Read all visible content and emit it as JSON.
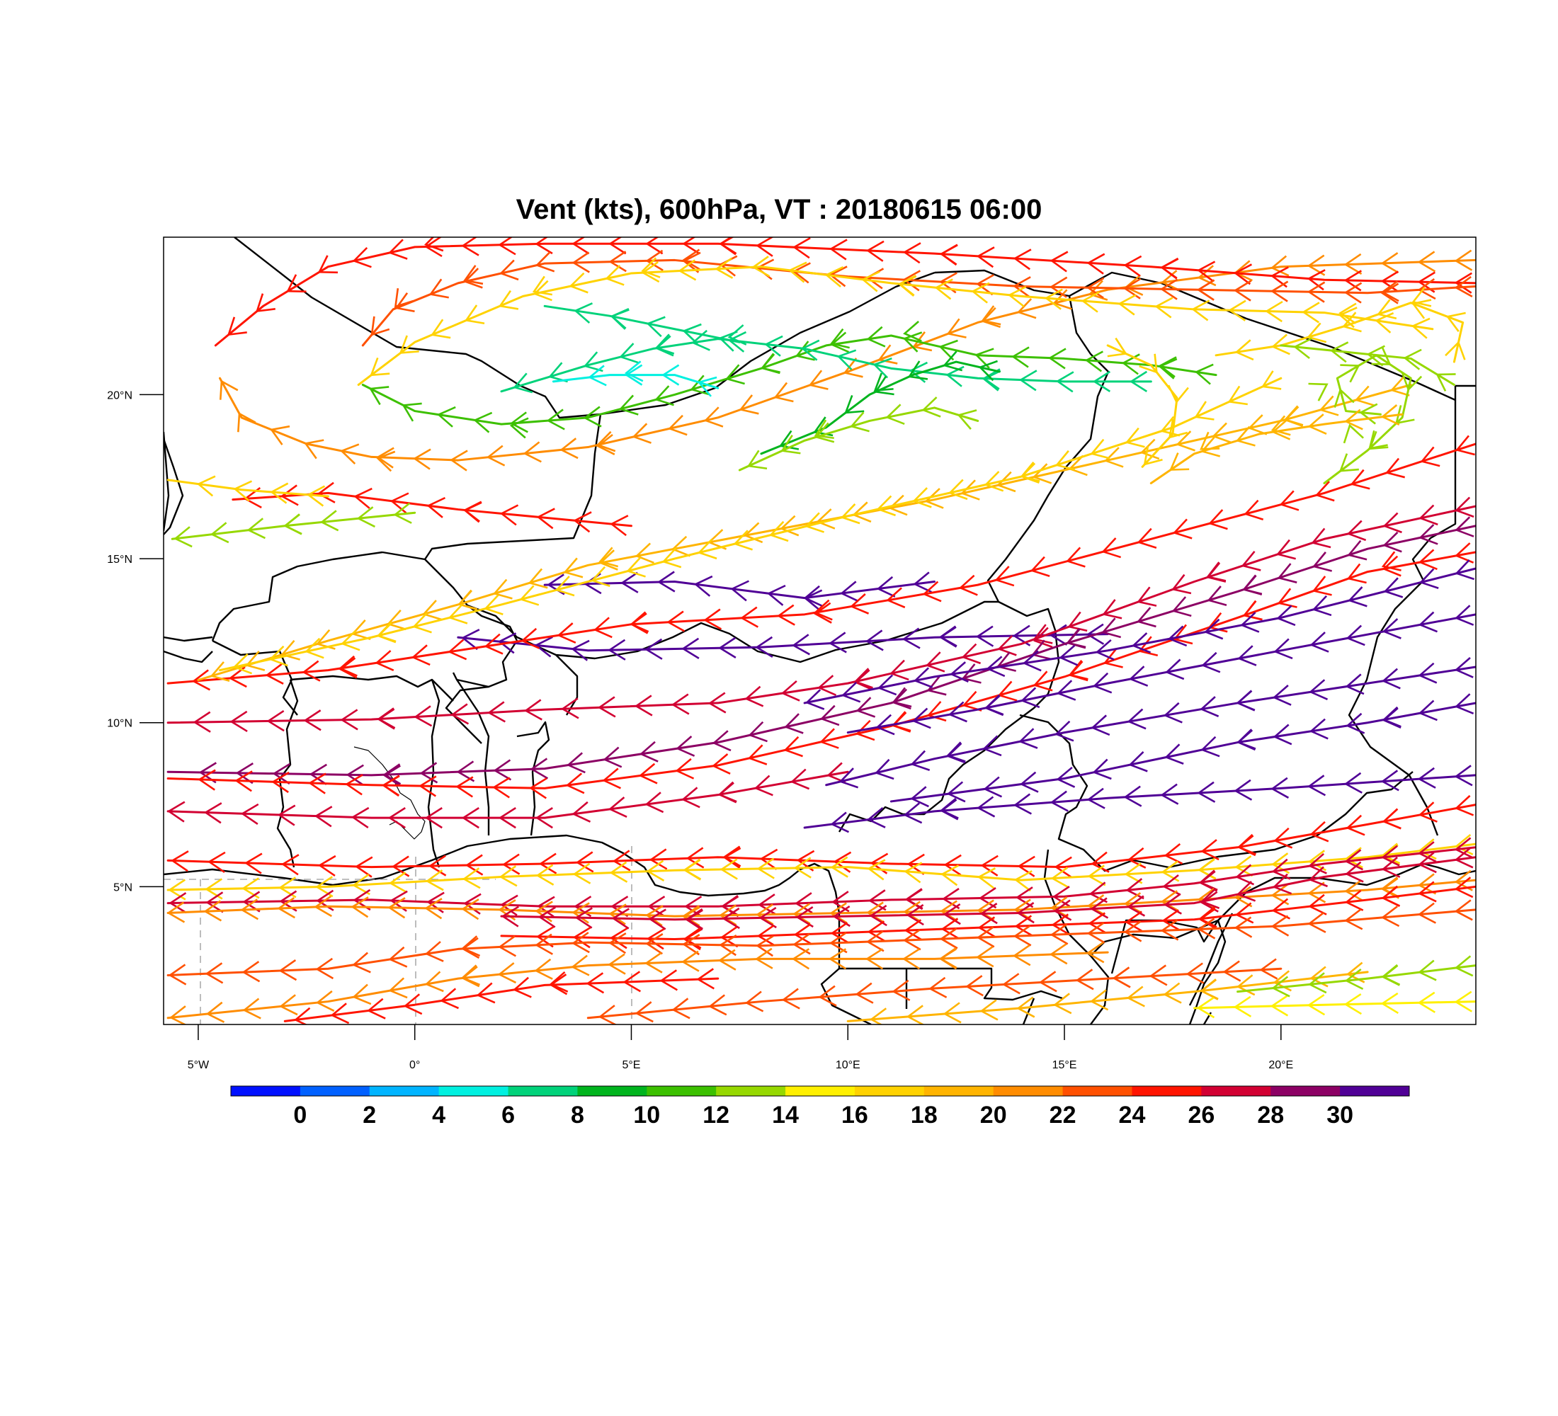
{
  "title": "Vent (kts), 600hPa, VT : 20180615  06:00",
  "map": {
    "projection": "cylindrical-equidistant",
    "lon_range": [
      -5.8,
      24.5
    ],
    "lat_range": [
      0.8,
      24.8
    ],
    "x_ticks": [
      {
        "lon": -5,
        "label": "5°W"
      },
      {
        "lon": 0,
        "label": "0°"
      },
      {
        "lon": 5,
        "label": "5°E"
      },
      {
        "lon": 10,
        "label": "10°E"
      },
      {
        "lon": 15,
        "label": "15°E"
      },
      {
        "lon": 20,
        "label": "20°E"
      }
    ],
    "y_ticks": [
      {
        "lat": 5,
        "label": "5°N"
      },
      {
        "lat": 10,
        "label": "10°N"
      },
      {
        "lat": 15,
        "label": "15°N"
      },
      {
        "lat": 20,
        "label": "20°N"
      }
    ],
    "wind_units": "kts"
  },
  "colorbar": {
    "colors": [
      "#0010ff",
      "#0060ff",
      "#00b4ff",
      "#00f0e0",
      "#00d27a",
      "#00b41e",
      "#3cc000",
      "#96d800",
      "#fff000",
      "#ffd200",
      "#ffb400",
      "#ff8c00",
      "#ff5000",
      "#ff1400",
      "#d20032",
      "#8c0064",
      "#500096"
    ],
    "labels": [
      "0",
      "2",
      "4",
      "6",
      "8",
      "10",
      "12",
      "14",
      "16",
      "18",
      "20",
      "22",
      "24",
      "26",
      "28",
      "30"
    ]
  },
  "streamlines": [
    {
      "speed": 24,
      "points": [
        [
          -4.2,
          16.8
        ],
        [
          -2,
          17
        ],
        [
          1,
          16.5
        ],
        [
          5,
          16
        ]
      ]
    },
    {
      "speed": 16,
      "points": [
        [
          -5.7,
          17.4
        ],
        [
          -4,
          17.1
        ],
        [
          -2,
          16.9
        ]
      ]
    },
    {
      "speed": 12,
      "points": [
        [
          -5.6,
          15.6
        ],
        [
          -3,
          16
        ],
        [
          0,
          16.4
        ]
      ]
    },
    {
      "speed": 30,
      "points": [
        [
          3,
          14.2
        ],
        [
          6,
          14.3
        ],
        [
          9,
          13.8
        ],
        [
          12,
          14.3
        ]
      ]
    },
    {
      "speed": 30,
      "points": [
        [
          1,
          12.6
        ],
        [
          4,
          12.2
        ],
        [
          8,
          12.3
        ],
        [
          12,
          12.6
        ],
        [
          16,
          12.7
        ]
      ]
    },
    {
      "speed": 24,
      "points": [
        [
          -5.7,
          11.2
        ],
        [
          -2,
          11.6
        ],
        [
          2,
          12.4
        ],
        [
          5,
          13
        ],
        [
          9,
          13.3
        ],
        [
          13,
          14.2
        ],
        [
          17,
          15.6
        ],
        [
          21,
          17
        ],
        [
          24.5,
          18.5
        ]
      ]
    },
    {
      "speed": 18,
      "points": [
        [
          -5,
          11.3
        ],
        [
          -2,
          12.5
        ],
        [
          1,
          13.6
        ],
        [
          4,
          14.8
        ],
        [
          8,
          15.8
        ],
        [
          12,
          16.8
        ],
        [
          16,
          18
        ],
        [
          20,
          19.2
        ],
        [
          23,
          20.3
        ]
      ]
    },
    {
      "speed": 16,
      "points": [
        [
          -4.5,
          11.6
        ],
        [
          -1,
          12.6
        ],
        [
          2,
          13.6
        ],
        [
          6,
          15
        ],
        [
          10,
          16.3
        ],
        [
          14,
          17.5
        ],
        [
          17.5,
          19
        ],
        [
          20,
          20.5
        ]
      ]
    },
    {
      "speed": 26,
      "points": [
        [
          -5.7,
          10
        ],
        [
          -1,
          10.1
        ],
        [
          3,
          10.4
        ],
        [
          7,
          10.6
        ],
        [
          10,
          11.2
        ],
        [
          14,
          12.4
        ],
        [
          18,
          14.3
        ],
        [
          21,
          15.6
        ],
        [
          24.5,
          16.6
        ]
      ]
    },
    {
      "speed": 28,
      "points": [
        [
          -5.7,
          8.5
        ],
        [
          -1,
          8.4
        ],
        [
          3,
          8.6
        ],
        [
          7,
          9.4
        ],
        [
          11,
          10.6
        ],
        [
          15,
          12.4
        ],
        [
          19,
          14
        ],
        [
          22,
          15.3
        ],
        [
          24.5,
          16
        ]
      ]
    },
    {
      "speed": 24,
      "points": [
        [
          -5.7,
          8.3
        ],
        [
          -1,
          8.1
        ],
        [
          3,
          8
        ],
        [
          7,
          8.7
        ],
        [
          11,
          9.9
        ],
        [
          15,
          11.4
        ],
        [
          19,
          13.2
        ],
        [
          22,
          14.6
        ],
        [
          24.5,
          15.2
        ]
      ]
    },
    {
      "speed": 26,
      "points": [
        [
          -5.7,
          7.3
        ],
        [
          -1,
          7.1
        ],
        [
          3,
          7.1
        ],
        [
          7,
          7.8
        ],
        [
          10,
          8.5
        ]
      ]
    },
    {
      "speed": 30,
      "points": [
        [
          9,
          10.6
        ],
        [
          12,
          11.4
        ],
        [
          16,
          12.2
        ],
        [
          20,
          13.2
        ],
        [
          24.5,
          14.7
        ]
      ]
    },
    {
      "speed": 30,
      "points": [
        [
          10,
          9.7
        ],
        [
          13,
          10.4
        ],
        [
          16,
          11.2
        ],
        [
          20,
          12.2
        ],
        [
          24.5,
          13.3
        ]
      ]
    },
    {
      "speed": 30,
      "points": [
        [
          9.5,
          8.1
        ],
        [
          12,
          8.9
        ],
        [
          15,
          9.7
        ],
        [
          19,
          10.6
        ],
        [
          24.5,
          11.7
        ]
      ]
    },
    {
      "speed": 30,
      "points": [
        [
          11,
          7.6
        ],
        [
          15,
          8.3
        ],
        [
          19,
          9.4
        ],
        [
          22,
          10
        ],
        [
          24.5,
          10.6
        ]
      ]
    },
    {
      "speed": 30,
      "points": [
        [
          9,
          6.8
        ],
        [
          12,
          7.3
        ],
        [
          16,
          7.7
        ],
        [
          20,
          8
        ],
        [
          24.5,
          8.4
        ]
      ]
    },
    {
      "speed": 24,
      "points": [
        [
          -5.7,
          5.8
        ],
        [
          -1,
          5.6
        ],
        [
          3,
          5.7
        ],
        [
          7,
          5.9
        ],
        [
          11,
          5.7
        ],
        [
          15,
          5.6
        ],
        [
          19,
          6.2
        ],
        [
          22,
          6.9
        ],
        [
          24.5,
          7.5
        ]
      ]
    },
    {
      "speed": 16,
      "points": [
        [
          -5.7,
          4.9
        ],
        [
          -2,
          5
        ],
        [
          2,
          5.3
        ],
        [
          6,
          5.5
        ],
        [
          10,
          5.6
        ],
        [
          14,
          5.2
        ],
        [
          18,
          5.5
        ],
        [
          22,
          5.9
        ],
        [
          24.5,
          6.3
        ]
      ]
    },
    {
      "speed": 26,
      "points": [
        [
          -5.7,
          4.5
        ],
        [
          -1,
          4.6
        ],
        [
          3,
          4.4
        ],
        [
          7,
          4.4
        ],
        [
          11,
          4.6
        ],
        [
          15,
          4.7
        ],
        [
          18,
          5.1
        ],
        [
          21,
          5.7
        ],
        [
          24.5,
          6.2
        ]
      ]
    },
    {
      "speed": 20,
      "points": [
        [
          -5.7,
          4.2
        ],
        [
          -2,
          4.4
        ],
        [
          2,
          4.3
        ],
        [
          6,
          4.1
        ],
        [
          10,
          4.2
        ],
        [
          14,
          4.3
        ],
        [
          18,
          4.6
        ],
        [
          22,
          4.9
        ],
        [
          24.5,
          5.2
        ]
      ]
    },
    {
      "speed": 26,
      "points": [
        [
          2,
          4.1
        ],
        [
          6,
          4
        ],
        [
          10,
          4.1
        ],
        [
          14,
          4.2
        ],
        [
          18,
          4.5
        ],
        [
          21,
          5.3
        ],
        [
          24.5,
          5.9
        ]
      ]
    },
    {
      "speed": 24,
      "points": [
        [
          2,
          3.5
        ],
        [
          6,
          3.4
        ],
        [
          10,
          3.6
        ],
        [
          14,
          3.8
        ],
        [
          18,
          4
        ],
        [
          22,
          4.6
        ],
        [
          24.5,
          5
        ]
      ]
    },
    {
      "speed": 22,
      "points": [
        [
          -5.7,
          2.3
        ],
        [
          -2,
          2.5
        ],
        [
          1,
          3.1
        ],
        [
          4,
          3.3
        ],
        [
          8,
          3.2
        ],
        [
          12,
          3.4
        ],
        [
          16,
          3.6
        ],
        [
          20,
          3.8
        ],
        [
          24.5,
          4.3
        ]
      ]
    },
    {
      "speed": 20,
      "points": [
        [
          -5.7,
          1
        ],
        [
          -2,
          1.5
        ],
        [
          1,
          2.2
        ],
        [
          4,
          2.6
        ],
        [
          8,
          2.8
        ],
        [
          12,
          2.8
        ],
        [
          16,
          3
        ]
      ]
    },
    {
      "speed": 24,
      "points": [
        [
          -3,
          0.9
        ],
        [
          0,
          1.4
        ],
        [
          3,
          2
        ],
        [
          7,
          2.2
        ]
      ]
    },
    {
      "speed": 22,
      "points": [
        [
          4,
          1
        ],
        [
          8,
          1.5
        ],
        [
          12,
          1.9
        ],
        [
          16,
          2.2
        ],
        [
          20,
          2.5
        ]
      ]
    },
    {
      "speed": 18,
      "points": [
        [
          10,
          0.9
        ],
        [
          14,
          1.3
        ],
        [
          18,
          1.8
        ],
        [
          22,
          2.4
        ]
      ]
    },
    {
      "speed": 14,
      "points": [
        [
          18,
          1.3
        ],
        [
          21,
          1.4
        ],
        [
          24.5,
          1.5
        ]
      ]
    },
    {
      "speed": 12,
      "points": [
        [
          19,
          1.8
        ],
        [
          22,
          2.2
        ],
        [
          24.5,
          2.6
        ]
      ]
    },
    {
      "speed": 20,
      "points": [
        [
          -4.5,
          20.5
        ],
        [
          -4,
          19.3
        ],
        [
          -2.5,
          18.5
        ],
        [
          -1,
          18.1
        ],
        [
          1,
          18
        ],
        [
          4,
          18.4
        ],
        [
          7,
          19.3
        ],
        [
          10,
          20.7
        ],
        [
          13,
          22.2
        ],
        [
          16,
          23.2
        ],
        [
          20,
          23.9
        ],
        [
          24.5,
          24.1
        ]
      ]
    },
    {
      "speed": 24,
      "points": [
        [
          -4.6,
          21.5
        ],
        [
          -3.5,
          22.7
        ],
        [
          -2,
          23.9
        ],
        [
          0,
          24.5
        ],
        [
          3,
          24.6
        ],
        [
          7,
          24.6
        ],
        [
          12,
          24.3
        ],
        [
          17,
          23.9
        ],
        [
          21,
          23.5
        ],
        [
          24.5,
          23.4
        ]
      ]
    },
    {
      "speed": 22,
      "points": [
        [
          -1.2,
          21.5
        ],
        [
          -0.5,
          22.6
        ],
        [
          1,
          23.4
        ],
        [
          3,
          24
        ],
        [
          6,
          24.1
        ],
        [
          10,
          23.6
        ],
        [
          14,
          23.3
        ],
        [
          18,
          23.2
        ],
        [
          22,
          23.1
        ],
        [
          24.5,
          23.3
        ]
      ]
    },
    {
      "speed": 16,
      "points": [
        [
          -1.3,
          20.3
        ],
        [
          0,
          21.6
        ],
        [
          2.5,
          23
        ],
        [
          5,
          23.7
        ],
        [
          8,
          23.9
        ],
        [
          11,
          23.4
        ],
        [
          14,
          23
        ],
        [
          18,
          22.6
        ],
        [
          21,
          22.5
        ],
        [
          23.5,
          22
        ]
      ]
    },
    {
      "speed": 10,
      "points": [
        [
          -1.2,
          20.3
        ],
        [
          0,
          19.5
        ],
        [
          2,
          19.1
        ],
        [
          4,
          19.3
        ],
        [
          6,
          20
        ],
        [
          8,
          20.8
        ],
        [
          9.5,
          21.5
        ],
        [
          11,
          21.8
        ],
        [
          13,
          21.2
        ],
        [
          15,
          21.1
        ],
        [
          17,
          20.9
        ],
        [
          18.5,
          20.6
        ]
      ]
    },
    {
      "speed": 6,
      "points": [
        [
          2,
          20.1
        ],
        [
          4,
          20.9
        ],
        [
          5.5,
          21.4
        ],
        [
          7,
          21.7
        ],
        [
          9,
          21.4
        ],
        [
          11,
          20.8
        ],
        [
          13,
          20.5
        ],
        [
          15,
          20.4
        ],
        [
          17,
          20.4
        ]
      ]
    },
    {
      "speed": 4,
      "points": [
        [
          3.2,
          20.4
        ],
        [
          4.5,
          20.6
        ],
        [
          6,
          20.6
        ],
        [
          7,
          20.2
        ]
      ]
    },
    {
      "speed": 6,
      "points": [
        [
          3,
          22.7
        ],
        [
          4.5,
          22.4
        ],
        [
          6,
          22
        ],
        [
          7.5,
          21.6
        ]
      ]
    },
    {
      "speed": 8,
      "points": [
        [
          8,
          18.2
        ],
        [
          9.5,
          19
        ],
        [
          10.5,
          20
        ],
        [
          11.5,
          20.6
        ],
        [
          12.5,
          21
        ],
        [
          13.5,
          20.7
        ]
      ]
    },
    {
      "speed": 12,
      "points": [
        [
          7.5,
          17.7
        ],
        [
          9,
          18.6
        ],
        [
          10.5,
          19.2
        ],
        [
          12,
          19.6
        ],
        [
          13,
          19.2
        ]
      ]
    },
    {
      "speed": 12,
      "points": [
        [
          21,
          17.3
        ],
        [
          22,
          18.3
        ],
        [
          22.8,
          19.3
        ],
        [
          23,
          20.5
        ],
        [
          22.2,
          21.2
        ],
        [
          21.3,
          20.5
        ],
        [
          21.5,
          19.5
        ],
        [
          22.3,
          19.4
        ]
      ]
    },
    {
      "speed": 16,
      "points": [
        [
          16.8,
          17.8
        ],
        [
          17.5,
          18.8
        ],
        [
          17.6,
          19.9
        ],
        [
          17,
          20.9
        ],
        [
          16,
          21.5
        ]
      ]
    },
    {
      "speed": 18,
      "points": [
        [
          17,
          17.3
        ],
        [
          18,
          18.2
        ],
        [
          19.5,
          18.8
        ],
        [
          21,
          19.1
        ],
        [
          22.8,
          19.4
        ]
      ]
    },
    {
      "speed": 16,
      "points": [
        [
          18.5,
          21.2
        ],
        [
          20,
          21.5
        ],
        [
          21.5,
          22.1
        ],
        [
          23,
          22.8
        ],
        [
          24.2,
          22.2
        ],
        [
          24,
          21
        ]
      ]
    },
    {
      "speed": 12,
      "points": [
        [
          20,
          21.5
        ],
        [
          21.5,
          21.3
        ],
        [
          23,
          21.1
        ],
        [
          24,
          20.3
        ]
      ]
    }
  ]
}
